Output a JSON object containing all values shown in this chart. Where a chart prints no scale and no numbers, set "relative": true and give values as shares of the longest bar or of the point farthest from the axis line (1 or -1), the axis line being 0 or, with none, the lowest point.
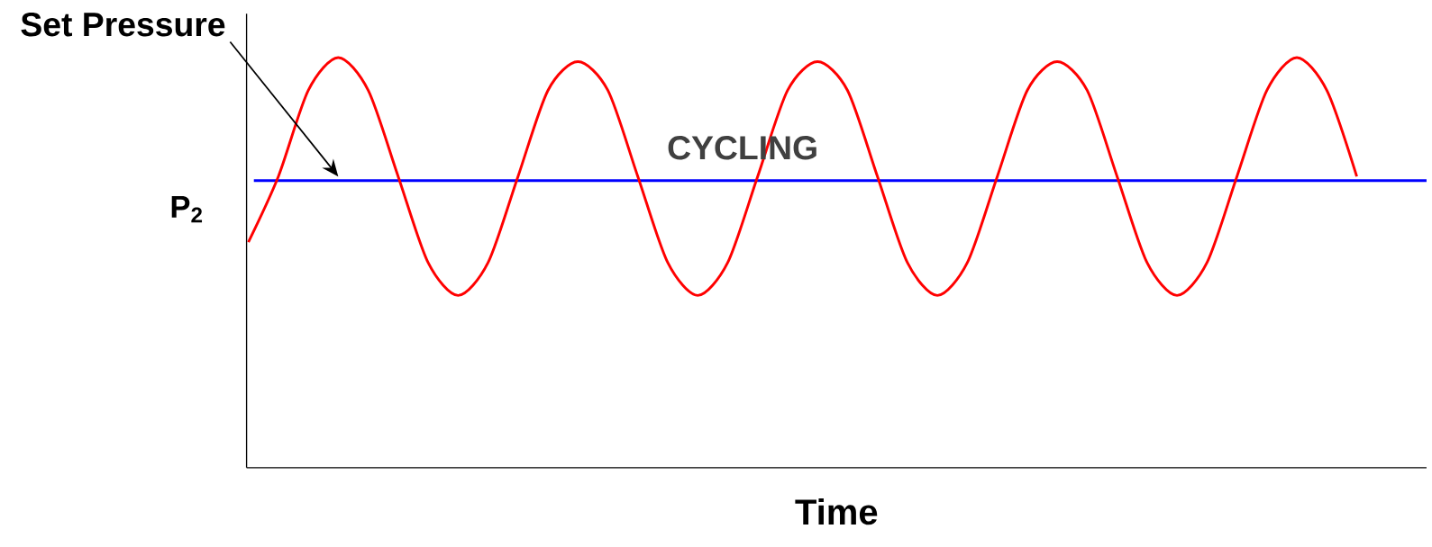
{
  "chart_data": {
    "type": "line",
    "relative": true,
    "xlabel": "Time",
    "categories": [
      null,
      null,
      null,
      null,
      null,
      null,
      null,
      null,
      null,
      null,
      null,
      null,
      null,
      null,
      null,
      null,
      null,
      null,
      null,
      null,
      null,
      null,
      null,
      null,
      null,
      null,
      null,
      null,
      null,
      null,
      null,
      null,
      null,
      null,
      null,
      null,
      null,
      null
    ],
    "series": [
      {
        "color": "#ff0000",
        "values": [
          0.55,
          0.71,
          0.92,
          1.0,
          0.92,
          0.71,
          0.5,
          0.42,
          0.5,
          0.71,
          0.92,
          0.99,
          0.92,
          0.71,
          0.5,
          0.42,
          0.5,
          0.71,
          0.92,
          0.99,
          0.92,
          0.71,
          0.5,
          0.42,
          0.5,
          0.71,
          0.92,
          0.99,
          0.92,
          0.71,
          0.5,
          0.42,
          0.5,
          0.71,
          0.92,
          1.0,
          0.92,
          0.71
        ]
      }
    ],
    "ref_lines": [
      {
        "axis": "y",
        "value": 0.7,
        "label": "P$_{2}$",
        "color": "#0000ff"
      }
    ],
    "annotations": [
      "Set Pressure",
      "CYCLING"
    ]
  }
}
